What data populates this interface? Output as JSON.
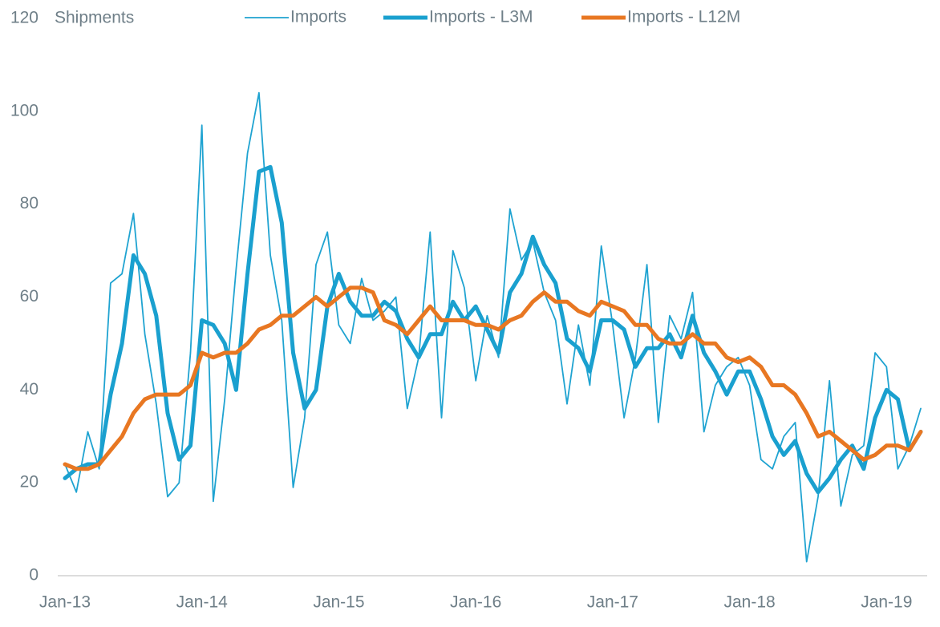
{
  "chart_data": {
    "type": "line",
    "y_label": "Shipments",
    "categories": [
      "Jan-13",
      null,
      null,
      null,
      null,
      null,
      null,
      null,
      null,
      null,
      null,
      null,
      "Jan-14",
      null,
      null,
      null,
      null,
      null,
      null,
      null,
      null,
      null,
      null,
      null,
      "Jan-15",
      null,
      null,
      null,
      null,
      null,
      null,
      null,
      null,
      null,
      null,
      null,
      "Jan-16",
      null,
      null,
      null,
      null,
      null,
      null,
      null,
      null,
      null,
      null,
      null,
      "Jan-17",
      null,
      null,
      null,
      null,
      null,
      null,
      null,
      null,
      null,
      null,
      null,
      "Jan-18",
      null,
      null,
      null,
      null,
      null,
      null,
      null,
      null,
      null,
      null,
      null,
      "Jan-19",
      null,
      null,
      null
    ],
    "series": [
      {
        "name": "Imports",
        "color": "#1fa3d1",
        "width": 1.8,
        "values": [
          24,
          18,
          31,
          23,
          63,
          65,
          78,
          52,
          37,
          17,
          20,
          48,
          97,
          16,
          38,
          66,
          91,
          104,
          69,
          55,
          19,
          34,
          67,
          74,
          54,
          50,
          64,
          55,
          57,
          60,
          36,
          47,
          74,
          34,
          70,
          62,
          42,
          56,
          47,
          79,
          68,
          72,
          61,
          55,
          37,
          54,
          41,
          71,
          54,
          34,
          47,
          67,
          33,
          56,
          51,
          61,
          31,
          41,
          45,
          47,
          41,
          25,
          23,
          30,
          33,
          3,
          17,
          42,
          15,
          26,
          28,
          48,
          45,
          23,
          28,
          36
        ]
      },
      {
        "name": "Imports - L3M",
        "color": "#1aa0cf",
        "width": 5,
        "values": [
          21,
          23,
          24,
          24,
          39,
          50,
          69,
          65,
          56,
          35,
          25,
          28,
          55,
          54,
          50,
          40,
          65,
          87,
          88,
          76,
          48,
          36,
          40,
          58,
          65,
          59,
          56,
          56,
          59,
          57,
          51,
          47,
          52,
          52,
          59,
          55,
          58,
          53,
          48,
          61,
          65,
          73,
          67,
          63,
          51,
          49,
          44,
          55,
          55,
          53,
          45,
          49,
          49,
          52,
          47,
          56,
          48,
          44,
          39,
          44,
          44,
          38,
          30,
          26,
          29,
          22,
          18,
          21,
          25,
          28,
          23,
          34,
          40,
          38,
          27,
          31
        ]
      },
      {
        "name": "Imports - L12M",
        "color": "#e87722",
        "width": 5,
        "values": [
          24,
          23,
          23,
          24,
          27,
          30,
          35,
          38,
          39,
          39,
          39,
          41,
          48,
          47,
          48,
          48,
          50,
          53,
          54,
          56,
          56,
          58,
          60,
          58,
          60,
          62,
          62,
          61,
          55,
          54,
          52,
          55,
          58,
          55,
          55,
          55,
          54,
          54,
          53,
          55,
          56,
          59,
          61,
          59,
          59,
          57,
          56,
          59,
          58,
          57,
          54,
          54,
          51,
          50,
          50,
          52,
          50,
          50,
          47,
          46,
          47,
          45,
          41,
          41,
          39,
          35,
          30,
          31,
          29,
          27,
          25,
          26,
          28,
          28,
          27,
          31
        ]
      }
    ],
    "ylim": [
      0,
      120
    ],
    "yticks": [
      0,
      20,
      40,
      60,
      80,
      100,
      120
    ],
    "grid": false
  }
}
